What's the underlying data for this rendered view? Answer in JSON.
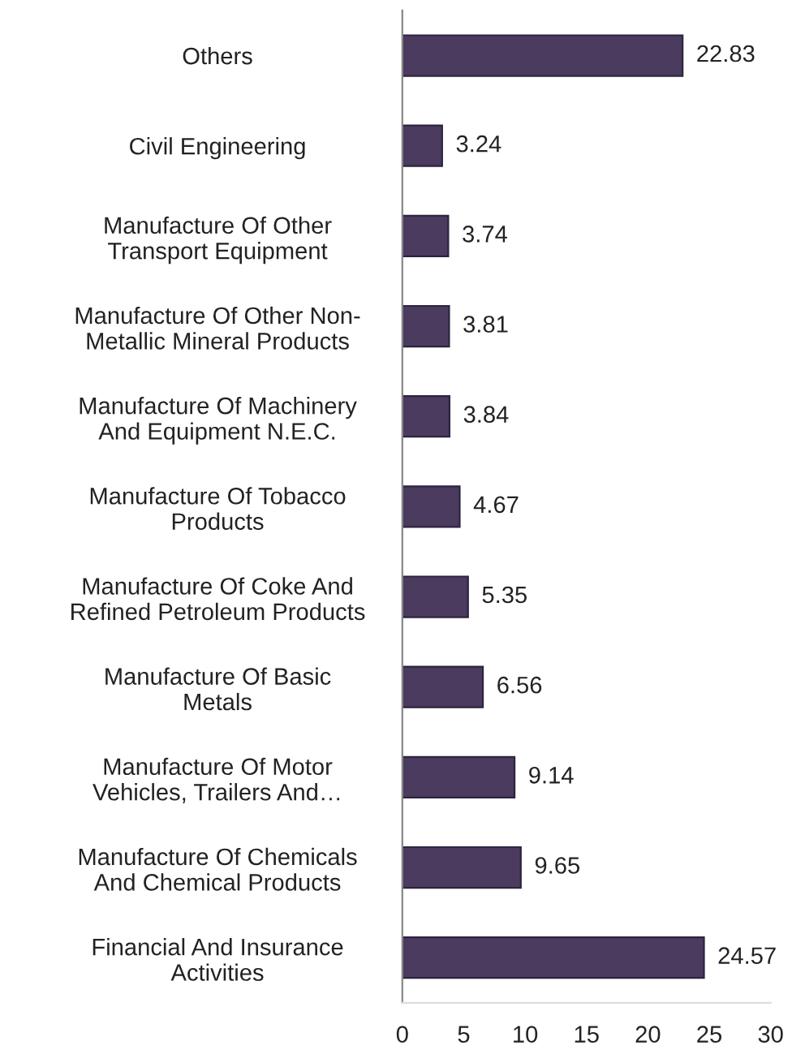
{
  "chart_data": {
    "type": "bar",
    "orientation": "horizontal",
    "categories": [
      "Others",
      "Civil Engineering",
      "Manufacture Of Other\nTransport Equipment",
      "Manufacture Of Other Non-\nMetallic Mineral Products",
      "Manufacture Of Machinery\nAnd Equipment N.E.C.",
      "Manufacture Of Tobacco\nProducts",
      "Manufacture Of Coke And\nRefined Petroleum Products",
      "Manufacture Of Basic\nMetals",
      "Manufacture Of Motor\nVehicles, Trailers And…",
      "Manufacture Of Chemicals\nAnd Chemical Products",
      "Financial And Insurance\nActivities"
    ],
    "values": [
      22.83,
      3.24,
      3.74,
      3.81,
      3.84,
      4.67,
      5.35,
      6.56,
      9.14,
      9.65,
      24.57
    ],
    "color": "#4b3b5e",
    "xlim": [
      0,
      30
    ],
    "xticks": [
      0,
      5,
      10,
      15,
      20,
      25,
      30
    ],
    "data_labels": true,
    "grid": false,
    "legend": false
  }
}
